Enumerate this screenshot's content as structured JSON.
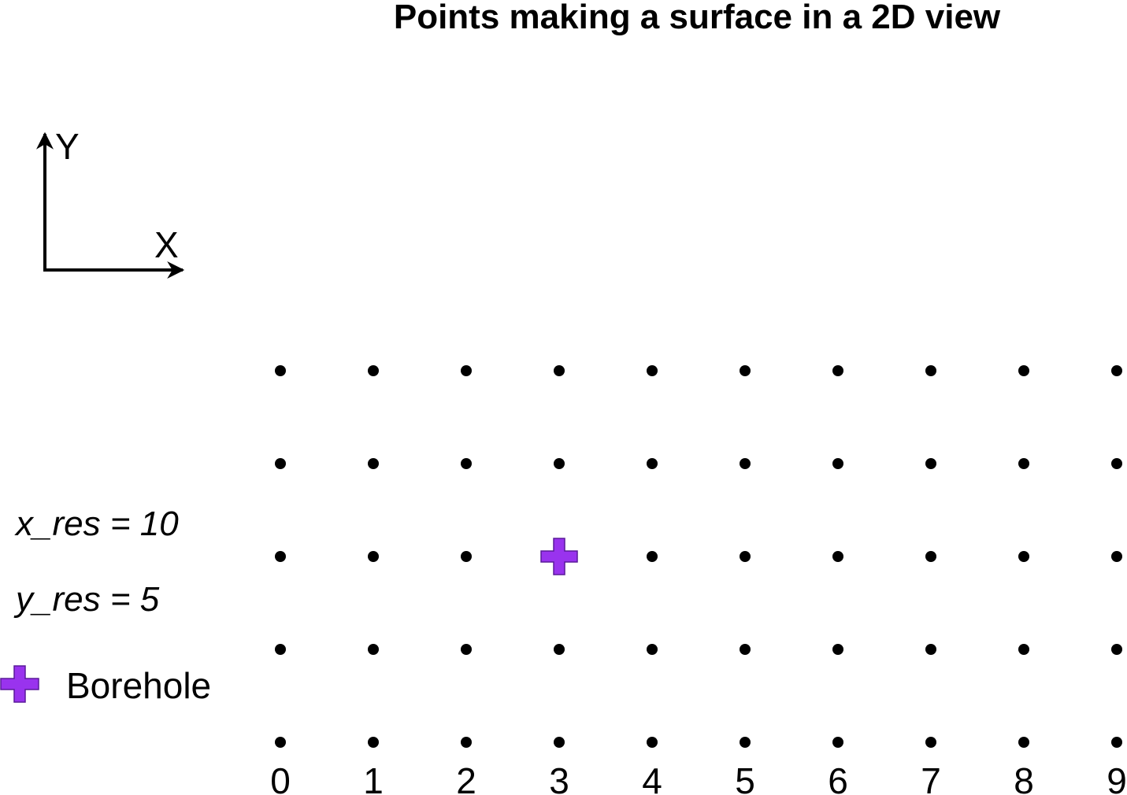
{
  "title": "Points making a surface in a 2D view",
  "axes": {
    "y_label": "Y",
    "x_label": "X"
  },
  "params": {
    "x_res": "x_res = 10",
    "y_res": "y_res = 5"
  },
  "legend": {
    "label": "Borehole",
    "marker_color": "#9933ee"
  },
  "grid": {
    "x_res": 10,
    "y_res": 5,
    "x_ticks": [
      "0",
      "1",
      "2",
      "3",
      "4",
      "5",
      "6",
      "7",
      "8",
      "9"
    ],
    "point_color": "#000000"
  },
  "borehole": {
    "col": 3,
    "row": 2,
    "color": "#9933ee"
  }
}
